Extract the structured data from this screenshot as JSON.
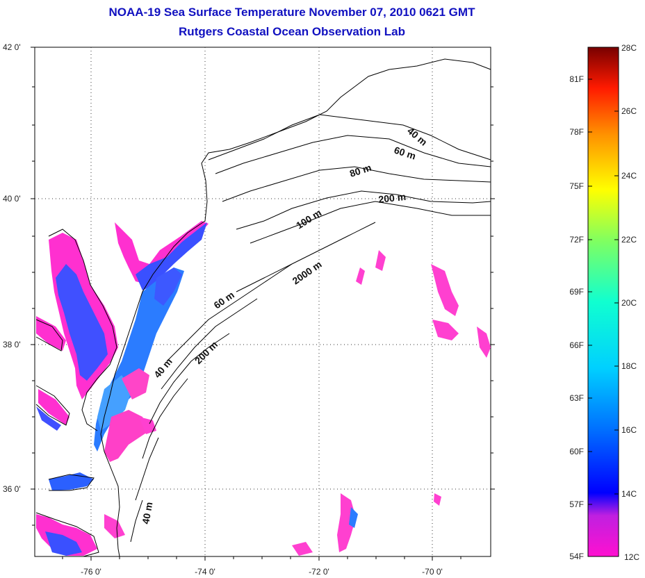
{
  "title": {
    "line1": "NOAA-19 Sea Surface Temperature November 07, 2010 0621 GMT",
    "line2": "Rutgers Coastal Ocean Observation Lab"
  },
  "map": {
    "lat_labels": [
      "42 0'",
      "40 0'",
      "38 0'",
      "36 0'"
    ],
    "lon_labels": [
      "-76 0'",
      "-74 0'",
      "-72 0'",
      "-70 0'"
    ],
    "contour_labels": [
      "40 m",
      "60 m",
      "80 m",
      "200 m",
      "100 m",
      "2000 m",
      "60 m",
      "40 m",
      "200 m",
      "40 m"
    ]
  },
  "colorbar": {
    "f_labels": [
      "81F",
      "78F",
      "75F",
      "72F",
      "69F",
      "66F",
      "63F",
      "60F",
      "57F",
      "54F"
    ],
    "c_labels": [
      "28C",
      "26C",
      "24C",
      "22C",
      "20C",
      "18C",
      "16C",
      "14C",
      "12C"
    ],
    "colors": [
      "#7a0000",
      "#ff2000",
      "#ff9900",
      "#ffff00",
      "#33ff66",
      "#00ffcc",
      "#0099ff",
      "#0000ff",
      "#ff00cc"
    ]
  }
}
